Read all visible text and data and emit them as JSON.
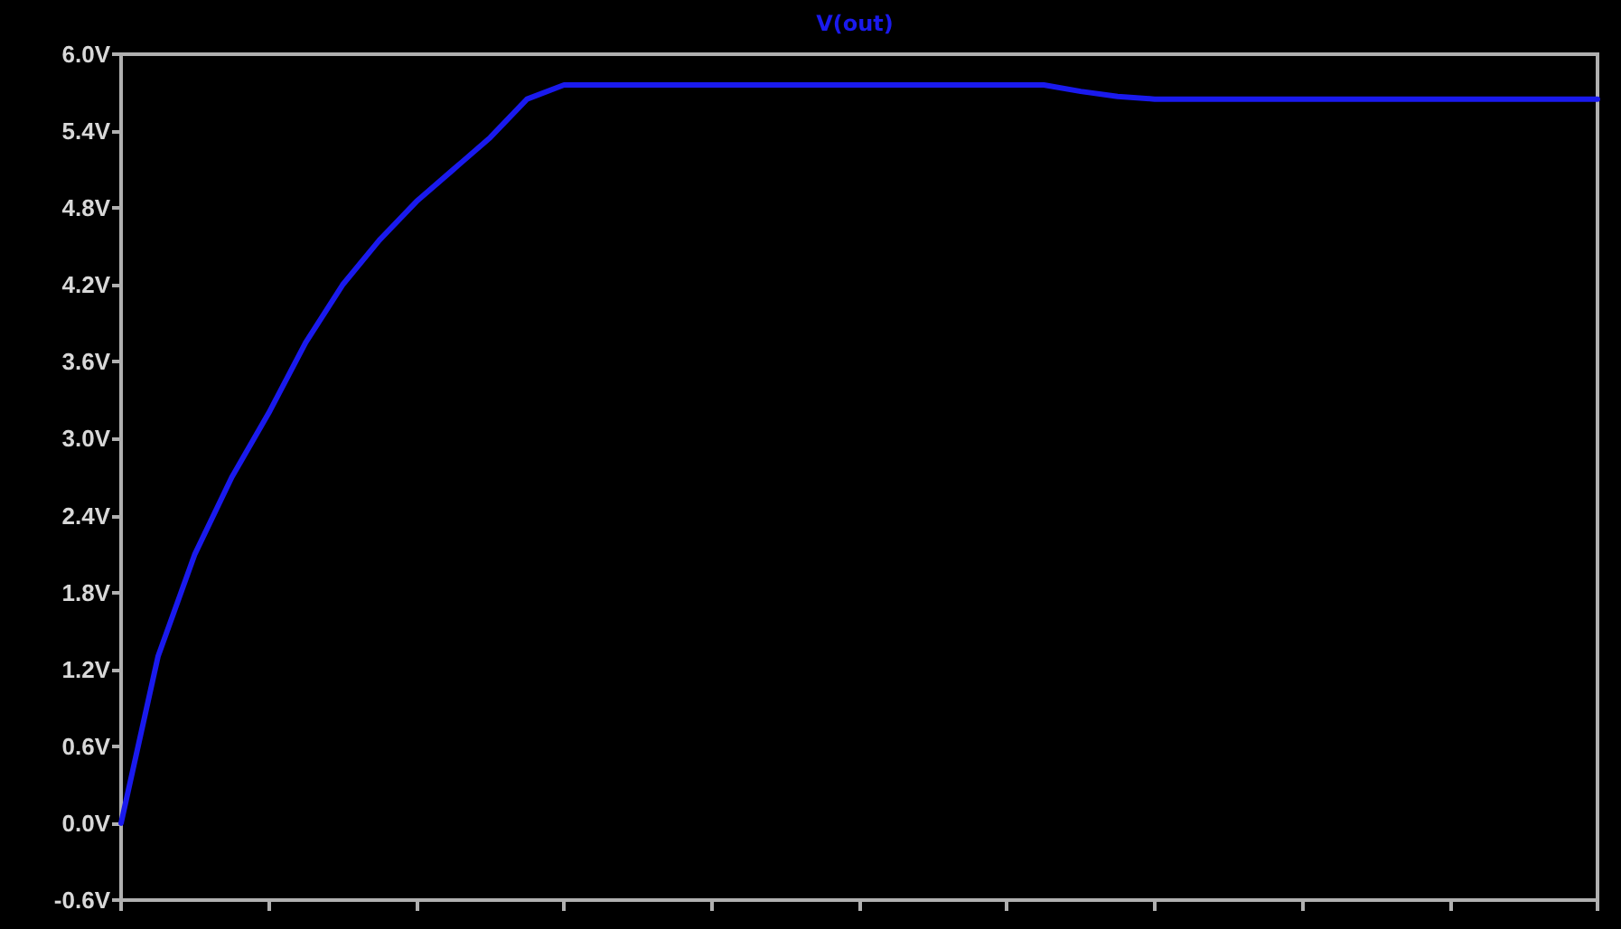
{
  "chart_data": {
    "type": "line",
    "title": "V(out)",
    "categories": [
      null,
      null,
      null,
      null,
      null,
      null,
      null,
      null,
      null,
      null,
      null,
      null,
      null,
      null,
      null,
      null,
      null,
      null,
      null,
      null,
      null,
      null,
      null,
      null,
      null,
      null,
      null,
      null,
      null,
      null,
      null,
      null,
      null,
      null,
      null,
      null,
      null,
      null,
      null,
      null,
      null
    ],
    "series": [
      {
        "color": "#1a1aee",
        "values": [
          0.0,
          1.3,
          2.1,
          2.7,
          3.2,
          3.75,
          4.2,
          4.55,
          4.85,
          5.1,
          5.35,
          5.65,
          5.76,
          5.76,
          5.76,
          5.76,
          5.76,
          5.76,
          5.76,
          5.76,
          5.76,
          5.76,
          5.76,
          5.76,
          5.76,
          5.76,
          5.71,
          5.67,
          5.65,
          5.65,
          5.65,
          5.65,
          5.65,
          5.65,
          5.65,
          5.65,
          5.65,
          5.65,
          5.65,
          5.65,
          5.65
        ]
      }
    ],
    "ylim": [
      -0.6,
      6.0
    ],
    "yticks": [
      {
        "value": -0.6,
        "label": "-0.6V"
      },
      {
        "value": 0,
        "label": "0.0V"
      },
      {
        "value": 0.6,
        "label": "0.6V"
      },
      {
        "value": 1.2,
        "label": "1.2V"
      },
      {
        "value": 1.8,
        "label": "1.8V"
      },
      {
        "value": 2.4,
        "label": "2.4V"
      },
      {
        "value": 3.0,
        "label": "3.0V"
      },
      {
        "value": 3.6,
        "label": "3.6V"
      },
      {
        "value": 4.2,
        "label": "4.2V"
      },
      {
        "value": 4.8,
        "label": "4.8V"
      },
      {
        "value": 5.4,
        "label": "5.4V"
      },
      {
        "value": 6.0,
        "label": "6.0V"
      }
    ],
    "marker": "none",
    "line_style": "solid",
    "tick_labels": "y"
  }
}
